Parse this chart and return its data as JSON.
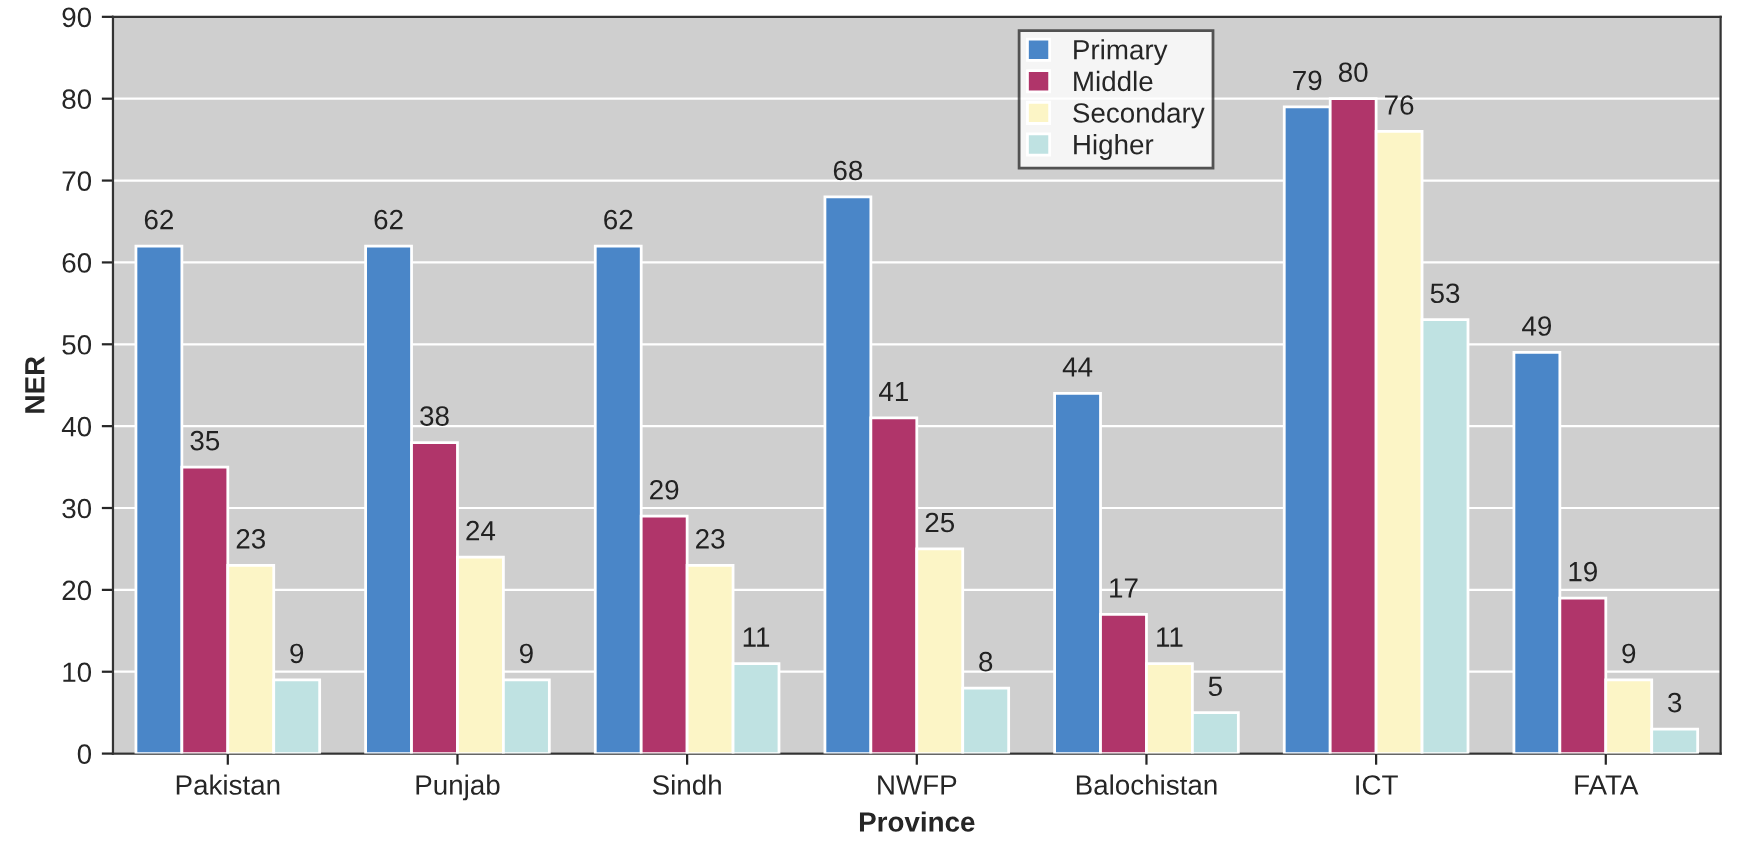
{
  "chart_data": {
    "type": "bar",
    "xlabel": "Province",
    "ylabel": "NER",
    "categories": [
      "Pakistan",
      "Punjab",
      "Sindh",
      "NWFP",
      "Balochistan",
      "ICT",
      "FATA"
    ],
    "series": [
      {
        "name": "Primary",
        "color": "#4a86c8",
        "values": [
          62,
          62,
          62,
          68,
          44,
          79,
          49
        ]
      },
      {
        "name": "Middle",
        "color": "#b0356a",
        "values": [
          35,
          38,
          29,
          41,
          17,
          80,
          19
        ]
      },
      {
        "name": "Secondary",
        "color": "#fcf5c6",
        "values": [
          23,
          24,
          23,
          25,
          11,
          76,
          9
        ]
      },
      {
        "name": "Higher",
        "color": "#bfe2e2",
        "values": [
          9,
          9,
          11,
          8,
          5,
          53,
          3
        ]
      }
    ],
    "ylim": [
      0,
      90
    ],
    "yticks": [
      0,
      10,
      20,
      30,
      40,
      50,
      60,
      70,
      80,
      90
    ],
    "grid": "y",
    "legend": "top",
    "data_labels": true
  }
}
